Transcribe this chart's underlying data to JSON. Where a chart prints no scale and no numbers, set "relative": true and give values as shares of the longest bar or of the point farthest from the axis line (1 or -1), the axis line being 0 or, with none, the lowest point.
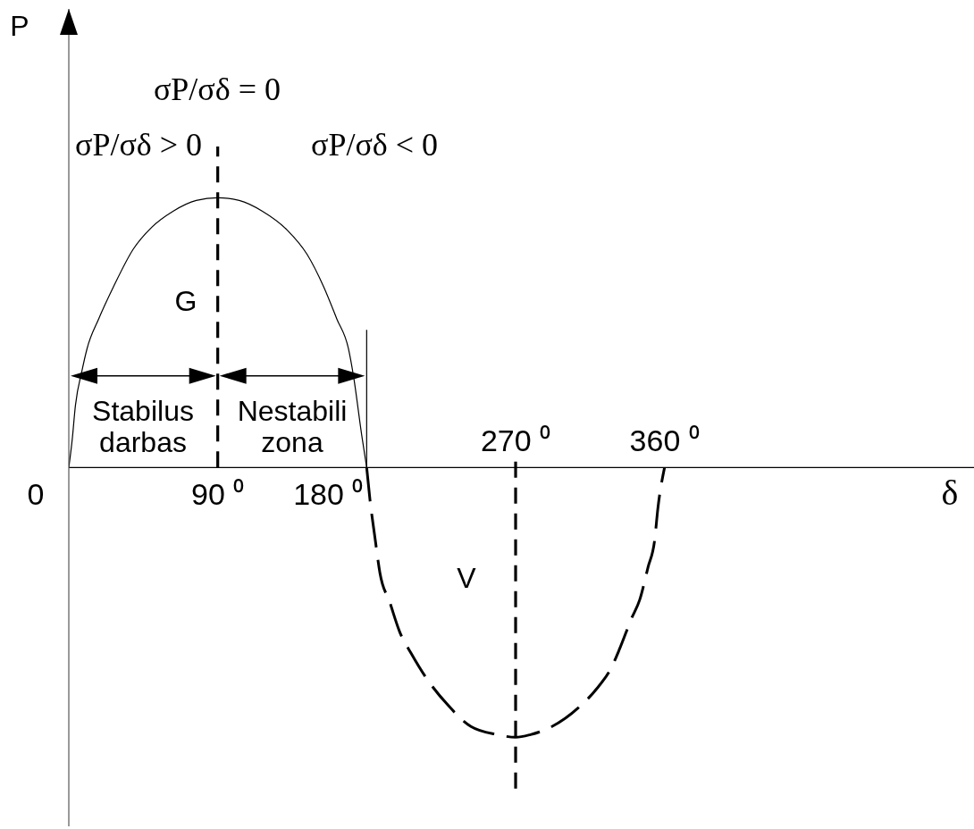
{
  "chart_data": {
    "type": "line",
    "relative": true,
    "xlabel": "δ",
    "xlim": [
      0,
      547
    ],
    "xticks": [
      {
        "value": 270,
        "label": "270 ⁰"
      },
      {
        "value": 360,
        "label": "360 ⁰"
      }
    ],
    "series": [
      {
        "color": "#000000",
        "line_style": "solid",
        "x": [
          0,
          2,
          4,
          8,
          11,
          18,
          27,
          39,
          50,
          63,
          77,
          90,
          103,
          117,
          132,
          144,
          154,
          162,
          169,
          172,
          177,
          180
        ],
        "values": [
          0,
          0.1,
          0.23,
          0.36,
          0.44,
          0.55,
          0.67,
          0.81,
          0.89,
          0.95,
          0.99,
          1,
          0.99,
          0.95,
          0.88,
          0.79,
          0.67,
          0.55,
          0.44,
          0.34,
          0.12,
          0
        ]
      },
      {
        "color": "#000000",
        "line_style": "dashed",
        "x": [
          180,
          182,
          185,
          188,
          194,
          200,
          207,
          216,
          229,
          243,
          259,
          270,
          279,
          292,
          308,
          319,
          328,
          333,
          340,
          345,
          350,
          354,
          356,
          360
        ],
        "values": [
          0,
          -0.12,
          -0.26,
          -0.39,
          -0.5,
          -0.61,
          -0.69,
          -0.78,
          -0.88,
          -0.96,
          -0.99,
          -1,
          -0.99,
          -0.96,
          -0.89,
          -0.82,
          -0.74,
          -0.67,
          -0.56,
          -0.49,
          -0.37,
          -0.27,
          -0.15,
          0
        ]
      }
    ],
    "ref_lines": [
      {
        "axis": "x",
        "value": 90,
        "label": "90 ⁰",
        "line_style": "dashed",
        "color": "#000000"
      },
      {
        "axis": "x",
        "value": 180,
        "label": "180 ⁰",
        "line_style": "solid",
        "color": "#000000"
      },
      {
        "axis": "x",
        "value": 270,
        "line_style": "dashed",
        "color": "#000000"
      }
    ],
    "annotations": [
      "P",
      "σP/σδ = 0",
      "σP/σδ > 0",
      "σP/σδ < 0",
      "G",
      "Stabilus darbas",
      "Nestabili zona",
      "0",
      "V"
    ]
  }
}
